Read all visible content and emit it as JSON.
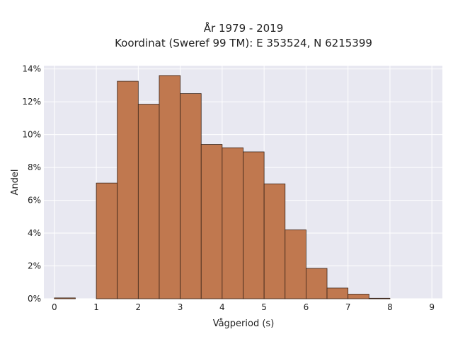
{
  "chart_data": {
    "type": "bar",
    "title_lines": [
      "År 1979 - 2019",
      "Koordinat (Sweref 99 TM): E 353524, N 6215399"
    ],
    "xlabel": "Vågperiod (s)",
    "ylabel": "Andel",
    "xlim": [
      -0.25,
      9.25
    ],
    "ylim": [
      0,
      14.2
    ],
    "x_ticks": [
      0,
      1,
      2,
      3,
      4,
      5,
      6,
      7,
      8,
      9
    ],
    "x_tick_labels": [
      "0",
      "1",
      "2",
      "3",
      "4",
      "5",
      "6",
      "7",
      "8",
      "9"
    ],
    "y_ticks": [
      0,
      2,
      4,
      6,
      8,
      10,
      12,
      14
    ],
    "y_tick_labels": [
      "0%",
      "2%",
      "4%",
      "6%",
      "8%",
      "10%",
      "12%",
      "14%"
    ],
    "bin_width": 0.5,
    "bins": [
      {
        "start": 0.0,
        "end": 0.5,
        "value": 0.05
      },
      {
        "start": 0.5,
        "end": 1.0,
        "value": 0.0
      },
      {
        "start": 1.0,
        "end": 1.5,
        "value": 7.05
      },
      {
        "start": 1.5,
        "end": 2.0,
        "value": 13.25
      },
      {
        "start": 2.0,
        "end": 2.5,
        "value": 11.85
      },
      {
        "start": 2.5,
        "end": 3.0,
        "value": 13.6
      },
      {
        "start": 3.0,
        "end": 3.5,
        "value": 12.5
      },
      {
        "start": 3.5,
        "end": 4.0,
        "value": 9.4
      },
      {
        "start": 4.0,
        "end": 4.5,
        "value": 9.2
      },
      {
        "start": 4.5,
        "end": 5.0,
        "value": 8.95
      },
      {
        "start": 5.0,
        "end": 5.5,
        "value": 7.0
      },
      {
        "start": 5.5,
        "end": 6.0,
        "value": 4.2
      },
      {
        "start": 6.0,
        "end": 6.5,
        "value": 1.85
      },
      {
        "start": 6.5,
        "end": 7.0,
        "value": 0.65
      },
      {
        "start": 7.0,
        "end": 7.5,
        "value": 0.28
      },
      {
        "start": 7.5,
        "end": 8.0,
        "value": 0.03
      }
    ],
    "grid": true,
    "legend": "none",
    "colors": {
      "bar_fill": "#c0784f",
      "bar_edge": "#3a2418",
      "plot_background": "#e8e8f1",
      "grid": "#ffffff"
    }
  }
}
